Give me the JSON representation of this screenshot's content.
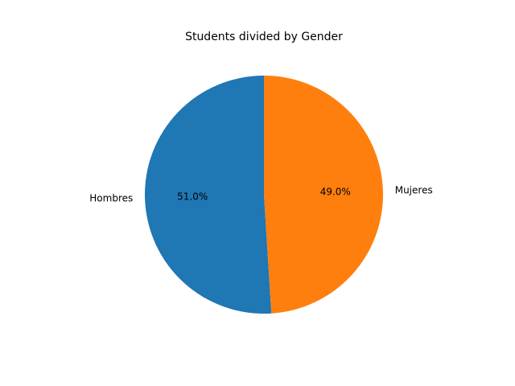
{
  "chart_data": {
    "type": "pie",
    "title": "Students divided by Gender",
    "slices": [
      {
        "label": "Hombres",
        "value": 51.0,
        "pct_label": "51.0%",
        "color": "#1f77b4"
      },
      {
        "label": "Mujeres",
        "value": 49.0,
        "pct_label": "49.0%",
        "color": "#ff7f0e"
      }
    ],
    "start_angle_deg": 90,
    "direction": "counterclockwise"
  }
}
